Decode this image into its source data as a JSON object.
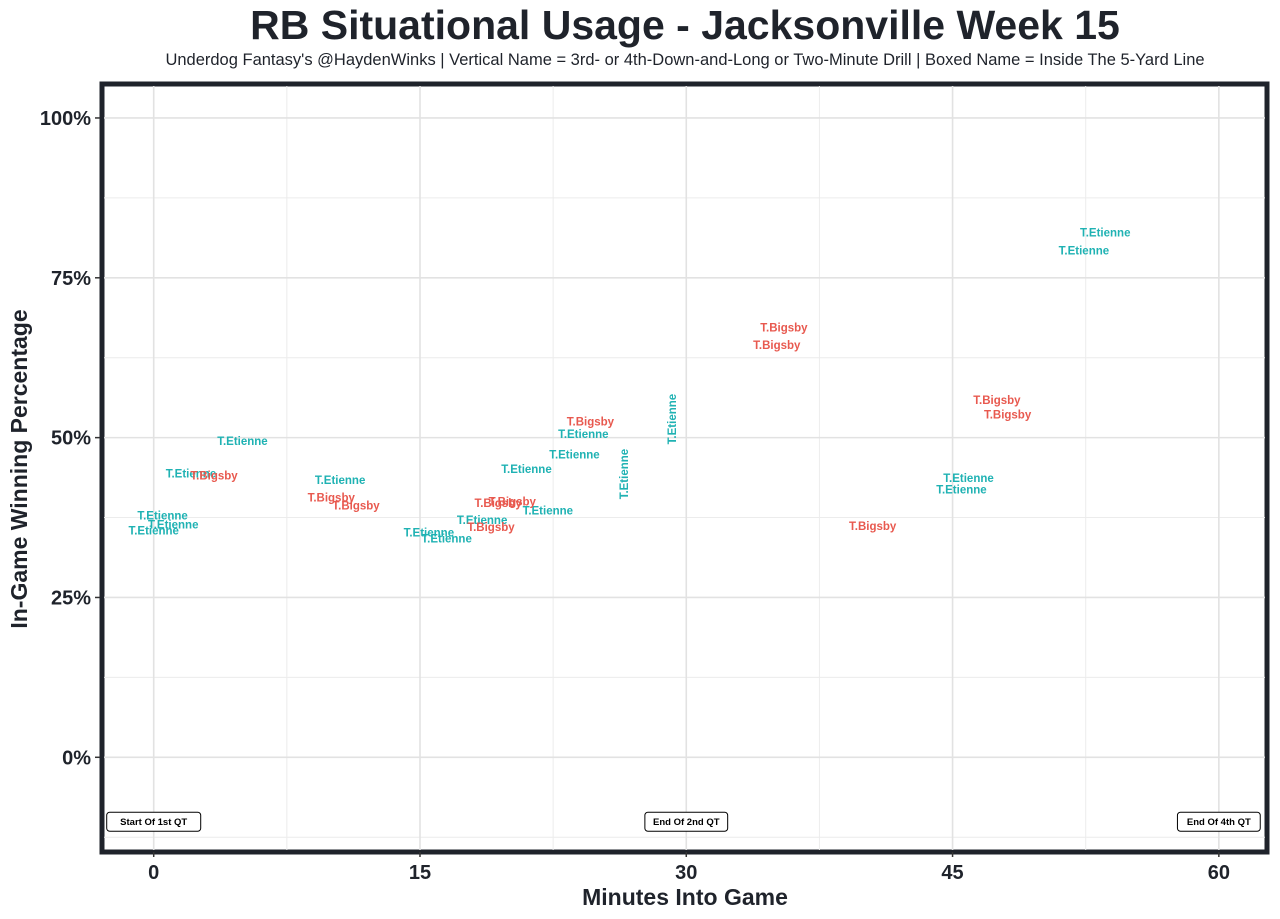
{
  "chart_data": {
    "type": "scatter",
    "title": "RB Situational Usage - Jacksonville Week 15",
    "subtitle": "Underdog Fantasy's @HaydenWinks | Vertical Name = 3rd- or 4th-Down-and-Long or Two-Minute Drill | Boxed Name = Inside The 5-Yard Line",
    "xlabel": "Minutes Into Game",
    "ylabel": "In-Game Winning Percentage",
    "xlim": [
      -2.8,
      62.6
    ],
    "ylim": [
      -14.5,
      105
    ],
    "x_ticks": [
      0,
      15,
      30,
      45,
      60
    ],
    "x_tick_labels": [
      "0",
      "15",
      "30",
      "45",
      "60"
    ],
    "y_ticks": [
      0,
      25,
      50,
      75,
      100
    ],
    "y_tick_labels": [
      "0%",
      "25%",
      "50%",
      "75%",
      "100%"
    ],
    "grid": true,
    "colors": {
      "T.Etienne": "#1fb2b3",
      "T.Bigsby": "#e8594f"
    },
    "series": [
      {
        "name": "T.Etienne",
        "points": [
          {
            "x": 0.0,
            "y": 35.5,
            "label": "T.Etienne"
          },
          {
            "x": 0.5,
            "y": 37.8,
            "label": "T.Etienne"
          },
          {
            "x": 1.1,
            "y": 36.4,
            "label": "T.Etienne"
          },
          {
            "x": 2.1,
            "y": 44.4,
            "label": "T.Etienne"
          },
          {
            "x": 5.0,
            "y": 49.5,
            "label": "T.Etienne"
          },
          {
            "x": 10.5,
            "y": 43.4,
            "label": "T.Etienne"
          },
          {
            "x": 15.5,
            "y": 35.2,
            "label": "T.Etienne"
          },
          {
            "x": 16.5,
            "y": 34.2,
            "label": "T.Etienne"
          },
          {
            "x": 18.5,
            "y": 37.1,
            "label": "T.Etienne"
          },
          {
            "x": 21.0,
            "y": 45.1,
            "label": "T.Etienne"
          },
          {
            "x": 22.2,
            "y": 38.6,
            "label": "T.Etienne"
          },
          {
            "x": 23.7,
            "y": 47.4,
            "label": "T.Etienne"
          },
          {
            "x": 24.2,
            "y": 50.6,
            "label": "T.Etienne"
          },
          {
            "x": 26.5,
            "y": 44.3,
            "label": "T.Etienne",
            "vertical": true
          },
          {
            "x": 29.2,
            "y": 52.9,
            "label": "T.Etienne",
            "vertical": true
          },
          {
            "x": 45.5,
            "y": 41.9,
            "label": "T.Etienne"
          },
          {
            "x": 45.9,
            "y": 43.7,
            "label": "T.Etienne"
          },
          {
            "x": 52.4,
            "y": 79.3,
            "label": "T.Etienne"
          },
          {
            "x": 53.6,
            "y": 82.1,
            "label": "T.Etienne"
          }
        ]
      },
      {
        "name": "T.Bigsby",
        "points": [
          {
            "x": 3.4,
            "y": 44.1,
            "label": "T.Bigsby"
          },
          {
            "x": 10.0,
            "y": 40.6,
            "label": "T.Bigsby"
          },
          {
            "x": 11.4,
            "y": 39.4,
            "label": "T.Bigsby"
          },
          {
            "x": 19.0,
            "y": 36.0,
            "label": "T.Bigsby"
          },
          {
            "x": 19.4,
            "y": 39.8,
            "label": "T.Bigsby"
          },
          {
            "x": 20.2,
            "y": 40.0,
            "label": "T.Bigsby"
          },
          {
            "x": 24.6,
            "y": 52.5,
            "label": "T.Bigsby"
          },
          {
            "x": 35.1,
            "y": 64.5,
            "label": "T.Bigsby"
          },
          {
            "x": 35.5,
            "y": 67.2,
            "label": "T.Bigsby"
          },
          {
            "x": 40.5,
            "y": 36.2,
            "label": "T.Bigsby"
          },
          {
            "x": 47.5,
            "y": 55.9,
            "label": "T.Bigsby"
          },
          {
            "x": 48.1,
            "y": 53.6,
            "label": "T.Bigsby"
          }
        ]
      }
    ],
    "annotations": [
      {
        "x": 0,
        "text": "Start Of 1st QT"
      },
      {
        "x": 30,
        "text": "End Of 2nd QT"
      },
      {
        "x": 60,
        "text": "End Of 4th QT"
      }
    ]
  }
}
